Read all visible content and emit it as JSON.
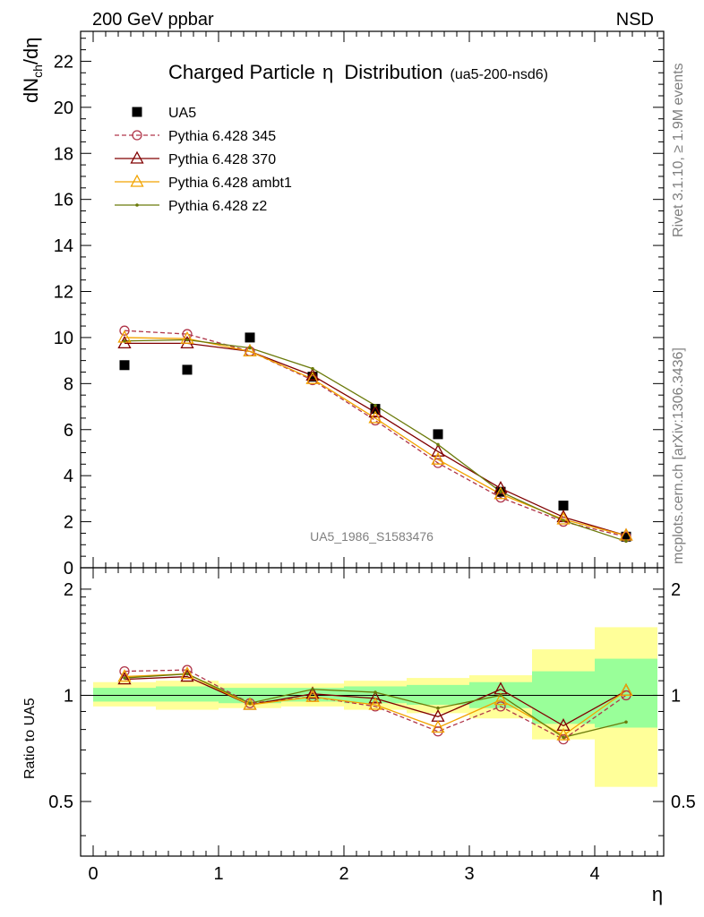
{
  "header": {
    "left": "200 GeV ppbar",
    "right": "NSD"
  },
  "side_text": {
    "top": "Rivet 3.1.10, ≥ 1.9M events",
    "bottom": "mcplots.cern.ch [arXiv:1306.3436]"
  },
  "chart_data": [
    {
      "panel": "main",
      "type": "scatter",
      "title": "Charged Particle",
      "title_symbol": "η",
      "title_suffix": "Distribution",
      "subtitle": "(ua5-200-nsd6)",
      "watermark": "UA5_1986_S1583476",
      "ylabel": "dN",
      "ylabel_sub": "ch",
      "ylabel_tail": "/dη",
      "xlim": [
        -0.1,
        4.55
      ],
      "ylim": [
        0,
        23.3
      ],
      "yticks": [
        0,
        2,
        4,
        6,
        8,
        10,
        12,
        14,
        16,
        18,
        20,
        22
      ],
      "ytick_labels": [
        "0",
        "2",
        "4",
        "6",
        "8",
        "10",
        "12",
        "14",
        "16",
        "18",
        "20",
        "22"
      ],
      "legend_position": "top-left",
      "series": [
        {
          "name": "UA5",
          "color": "#000000",
          "marker": "square",
          "line": "none",
          "x": [
            0.25,
            0.75,
            1.25,
            1.75,
            2.25,
            2.75,
            3.25,
            3.75,
            4.25
          ],
          "y": [
            8.8,
            8.6,
            10.0,
            8.3,
            6.9,
            5.8,
            3.3,
            2.7,
            1.35
          ]
        },
        {
          "name": "Pythia 6.428 345",
          "color": "#b0364a",
          "marker": "circle",
          "line": "dashed",
          "x": [
            0.25,
            0.75,
            1.25,
            1.75,
            2.25,
            2.75,
            3.25,
            3.75,
            4.25
          ],
          "y": [
            10.3,
            10.15,
            9.4,
            8.15,
            6.4,
            4.55,
            3.05,
            2.0,
            1.35
          ]
        },
        {
          "name": "Pythia 6.428 370",
          "color": "#800000",
          "marker": "triangle",
          "line": "solid",
          "x": [
            0.25,
            0.75,
            1.25,
            1.75,
            2.25,
            2.75,
            3.25,
            3.75,
            4.25
          ],
          "y": [
            9.75,
            9.75,
            9.4,
            8.35,
            6.75,
            5.05,
            3.45,
            2.2,
            1.4
          ]
        },
        {
          "name": "Pythia 6.428 ambt1",
          "color": "#f2a300",
          "marker": "triangle",
          "line": "solid",
          "x": [
            0.25,
            0.75,
            1.25,
            1.75,
            2.25,
            2.75,
            3.25,
            3.75,
            4.25
          ],
          "y": [
            10.0,
            9.95,
            9.4,
            8.2,
            6.5,
            4.7,
            3.2,
            2.1,
            1.4
          ]
        },
        {
          "name": "Pythia 6.428 z2",
          "color": "#6b7a0a",
          "marker": "dot",
          "line": "solid",
          "x": [
            0.25,
            0.75,
            1.25,
            1.75,
            2.25,
            2.75,
            3.25,
            3.75,
            4.25
          ],
          "y": [
            9.85,
            9.9,
            9.55,
            8.65,
            7.05,
            5.35,
            3.3,
            2.05,
            1.15
          ]
        }
      ]
    },
    {
      "panel": "ratio",
      "type": "line",
      "ylabel": "Ratio to UA5",
      "xlabel": "η",
      "xlim": [
        -0.1,
        4.55
      ],
      "ylim": [
        0.35,
        2.3
      ],
      "log_y": true,
      "xticks": [
        0,
        1,
        2,
        3,
        4
      ],
      "xtick_labels": [
        "0",
        "1",
        "2",
        "3",
        "4"
      ],
      "yticks": [
        0.5,
        1,
        2
      ],
      "ytick_labels": [
        "0.5",
        "1",
        "2"
      ],
      "reference_line": 1,
      "uncertainty_bands": {
        "x_edges": [
          0,
          0.5,
          1.0,
          1.5,
          2.0,
          2.5,
          3.0,
          3.5,
          4.0,
          4.5
        ],
        "inner": [
          [
            0.96,
            1.05
          ],
          [
            0.96,
            1.06
          ],
          [
            0.95,
            1.05
          ],
          [
            0.96,
            1.05
          ],
          [
            0.95,
            1.06
          ],
          [
            0.94,
            1.07
          ],
          [
            0.92,
            1.09
          ],
          [
            0.83,
            1.17
          ],
          [
            0.81,
            1.27
          ]
        ],
        "outer": [
          [
            0.93,
            1.09
          ],
          [
            0.91,
            1.1
          ],
          [
            0.92,
            1.08
          ],
          [
            0.93,
            1.08
          ],
          [
            0.91,
            1.1
          ],
          [
            0.89,
            1.12
          ],
          [
            0.86,
            1.14
          ],
          [
            0.75,
            1.35
          ],
          [
            0.55,
            1.56
          ]
        ],
        "inner_color": "#99ff99",
        "outer_color": "#ffff99"
      },
      "series": [
        {
          "name": "Pythia 6.428 345",
          "color": "#b0364a",
          "marker": "circle",
          "line": "dashed",
          "x": [
            0.25,
            0.75,
            1.25,
            1.75,
            2.25,
            2.75,
            3.25,
            3.75,
            4.25
          ],
          "y": [
            1.17,
            1.18,
            0.95,
            0.99,
            0.93,
            0.79,
            0.93,
            0.75,
            1.0
          ]
        },
        {
          "name": "Pythia 6.428 370",
          "color": "#800000",
          "marker": "triangle",
          "line": "solid",
          "x": [
            0.25,
            0.75,
            1.25,
            1.75,
            2.25,
            2.75,
            3.25,
            3.75,
            4.25
          ],
          "y": [
            1.11,
            1.13,
            0.94,
            1.01,
            0.98,
            0.87,
            1.04,
            0.82,
            1.03
          ]
        },
        {
          "name": "Pythia 6.428 ambt1",
          "color": "#f2a300",
          "marker": "triangle",
          "line": "solid",
          "x": [
            0.25,
            0.75,
            1.25,
            1.75,
            2.25,
            2.75,
            3.25,
            3.75,
            4.25
          ],
          "y": [
            1.13,
            1.15,
            0.94,
            0.99,
            0.94,
            0.81,
            0.97,
            0.77,
            1.03
          ]
        },
        {
          "name": "Pythia 6.428 z2",
          "color": "#6b7a0a",
          "marker": "dot",
          "line": "solid",
          "x": [
            0.25,
            0.75,
            1.25,
            1.75,
            2.25,
            2.75,
            3.25,
            3.75,
            4.25
          ],
          "y": [
            1.12,
            1.15,
            0.95,
            1.04,
            1.02,
            0.92,
            1.0,
            0.76,
            0.84
          ]
        }
      ]
    }
  ]
}
